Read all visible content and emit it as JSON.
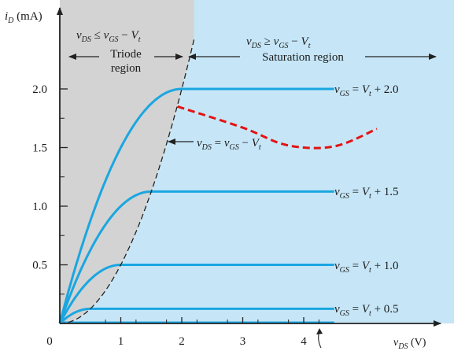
{
  "colors": {
    "triode_fill": "#d3d3d3",
    "saturation_fill": "#c6e6f7",
    "curve": "#1aa6e0",
    "overlay": "#e31313",
    "axis": "#222222"
  },
  "chart_data": {
    "type": "line",
    "title": "",
    "xlabel": "vDS (V)",
    "ylabel": "iD (mA)",
    "xlim": [
      0,
      5.2
    ],
    "ylim": [
      0,
      2.45
    ],
    "x_ticks": [
      "0",
      "1",
      "2",
      "3",
      "4"
    ],
    "y_ticks": [
      "0.5",
      "1.0",
      "1.5",
      "2.0"
    ],
    "x_tick_values": [
      0,
      1,
      2,
      3,
      4
    ],
    "y_tick_values": [
      0.5,
      1.0,
      1.5,
      2.0
    ],
    "grid": false,
    "series": [
      {
        "name": "vGS = Vt + 2.0",
        "overdrive": 2.0,
        "saturation_current": 2.0
      },
      {
        "name": "vGS = Vt + 1.5",
        "overdrive": 1.5,
        "saturation_current": 1.125
      },
      {
        "name": "vGS = Vt + 1.0",
        "overdrive": 1.0,
        "saturation_current": 0.5
      },
      {
        "name": "vGS = Vt + 0.5",
        "overdrive": 0.5,
        "saturation_current": 0.125
      }
    ],
    "boundary": {
      "label": "vDS = vGS − Vt",
      "description": "iD = 0.5 · vDS²",
      "x": [
        0,
        0.5,
        1.0,
        1.5,
        2.0,
        2.2
      ],
      "y": [
        0,
        0.125,
        0.5,
        1.125,
        2.0,
        2.42
      ]
    },
    "overlay_curve": {
      "x": [
        1.93,
        3.0,
        3.73,
        4.5,
        5.2
      ],
      "y": [
        1.85,
        1.67,
        1.52,
        1.51,
        1.66
      ]
    },
    "regions": {
      "triode_condition": "vDS ≤ vGS − Vt",
      "triode_name_line1": "Triode",
      "triode_name_line2": "region",
      "saturation_condition": "vDS ≥ vGS − Vt",
      "saturation_name": "Saturation region"
    },
    "curve_labels": [
      "vGS = Vt + 2.0",
      "vGS = Vt + 1.5",
      "vGS = Vt + 1.0",
      "vGS = Vt + 0.5"
    ]
  }
}
